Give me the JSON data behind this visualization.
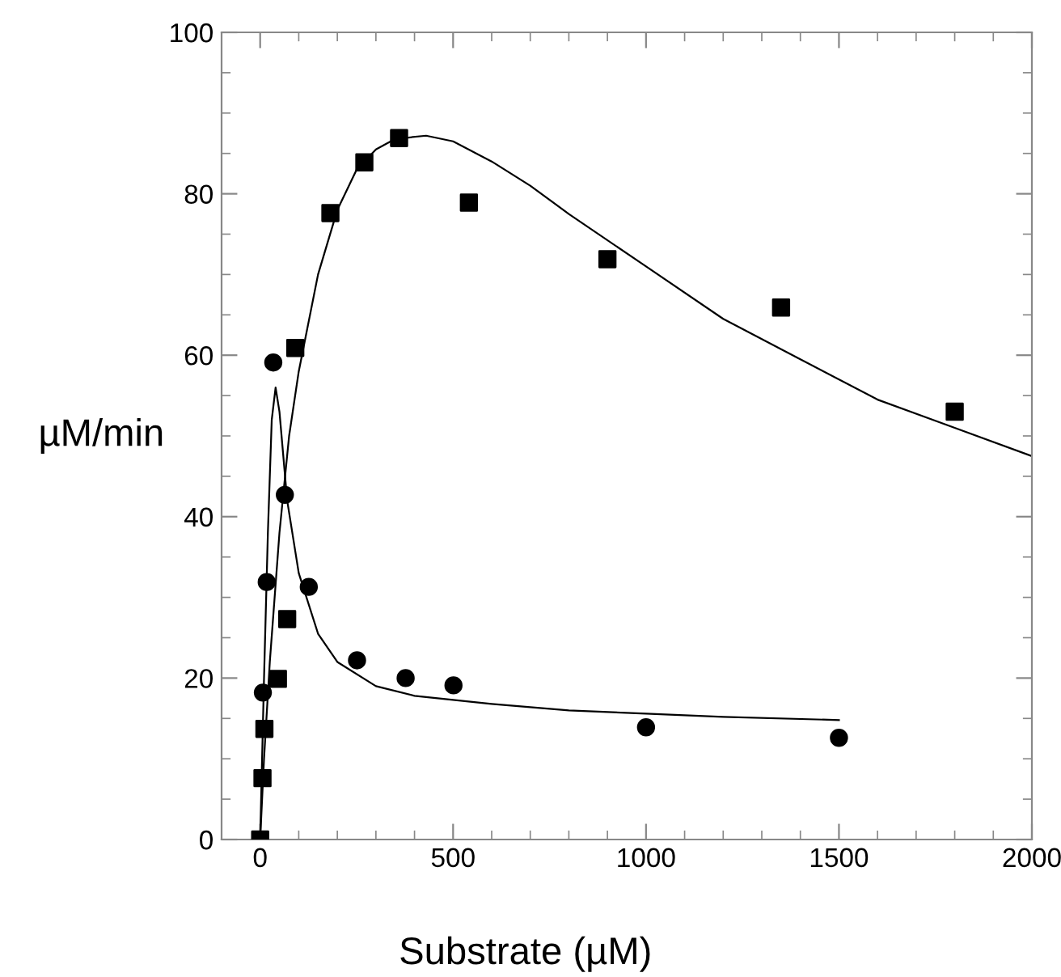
{
  "chart_data": {
    "type": "scatter",
    "xlabel": "Substrate (µM)",
    "ylabel": "µM/min",
    "xlim": [
      -100,
      2000
    ],
    "ylim": [
      0,
      100
    ],
    "xticks": [
      0,
      500,
      1000,
      1500,
      2000
    ],
    "yticks": [
      0,
      20,
      40,
      60,
      80,
      100
    ],
    "grid": false,
    "series": [
      {
        "marker": "square",
        "color": "#000000",
        "x": [
          0,
          6,
          11,
          46,
          70,
          91,
          182,
          270,
          360,
          541,
          900,
          1350,
          1800
        ],
        "values": [
          0,
          7.6,
          13.7,
          19.9,
          27.3,
          60.9,
          77.6,
          83.9,
          86.9,
          78.9,
          71.9,
          65.9,
          53
        ]
      },
      {
        "marker": "circle",
        "color": "#000000",
        "x": [
          7,
          17,
          34,
          64,
          126,
          251,
          377,
          501,
          1000,
          1500
        ],
        "values": [
          18.2,
          31.9,
          59.1,
          42.7,
          31.3,
          22.2,
          20.0,
          19.1,
          13.9,
          12.6
        ]
      },
      {
        "type": "line",
        "marker": "none",
        "line_style": "solid",
        "color": "#000000",
        "x": [
          0,
          10,
          25,
          50,
          75,
          100,
          150,
          200,
          250,
          300,
          350,
          430,
          500,
          600,
          700,
          800,
          1000,
          1200,
          1400,
          1600,
          1800,
          2000
        ],
        "values": [
          0,
          10,
          22,
          38,
          50,
          58,
          70,
          78,
          83,
          85.5,
          86.8,
          87.2,
          86.5,
          84,
          81,
          77.5,
          71,
          64.5,
          59.5,
          54.5,
          51,
          47.5
        ]
      },
      {
        "type": "line",
        "marker": "none",
        "line_style": "solid",
        "color": "#000000",
        "x": [
          0,
          10,
          20,
          30,
          40,
          50,
          70,
          100,
          150,
          200,
          300,
          400,
          600,
          800,
          1000,
          1200,
          1500
        ],
        "values": [
          0,
          20,
          38,
          52,
          56,
          53,
          42,
          33,
          25.5,
          22,
          19,
          17.8,
          16.8,
          16,
          15.6,
          15.2,
          14.8
        ]
      }
    ]
  }
}
